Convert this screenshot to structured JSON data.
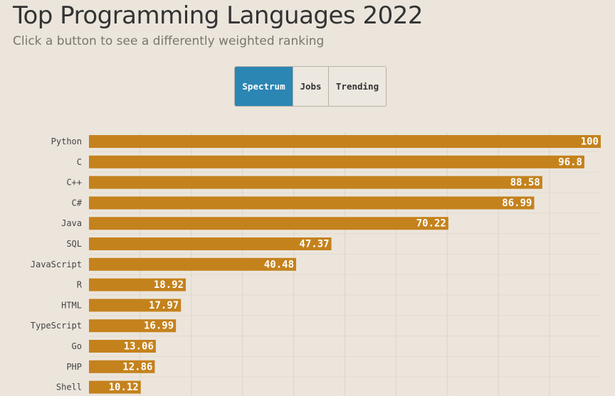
{
  "page": {
    "title": "Top Programming Languages 2022",
    "subtitle": "Click a button to see a differently weighted ranking"
  },
  "buttons": [
    {
      "label": "Spectrum",
      "active": true
    },
    {
      "label": "Jobs",
      "active": false
    },
    {
      "label": "Trending",
      "active": false
    }
  ],
  "colors": {
    "bar": "#c4821d",
    "grid": "#dcd5c9",
    "active_button": "#2b86b3"
  },
  "chart_data": {
    "type": "bar",
    "orientation": "horizontal",
    "title": "Top Programming Languages 2022",
    "weighting": "Spectrum",
    "categories": [
      "Python",
      "C",
      "C++",
      "C#",
      "Java",
      "SQL",
      "JavaScript",
      "R",
      "HTML",
      "TypeScript",
      "Go",
      "PHP",
      "Shell"
    ],
    "values": [
      100,
      96.8,
      88.58,
      86.99,
      70.22,
      47.37,
      40.48,
      18.92,
      17.97,
      16.99,
      13.06,
      12.86,
      10.12
    ],
    "value_labels": [
      "100",
      "96.8",
      "88.58",
      "86.99",
      "70.22",
      "47.37",
      "40.48",
      "18.92",
      "17.97",
      "16.99",
      "13.06",
      "12.86",
      "10.12"
    ],
    "xlim": [
      0,
      100
    ],
    "grid": true,
    "legend": "none"
  }
}
